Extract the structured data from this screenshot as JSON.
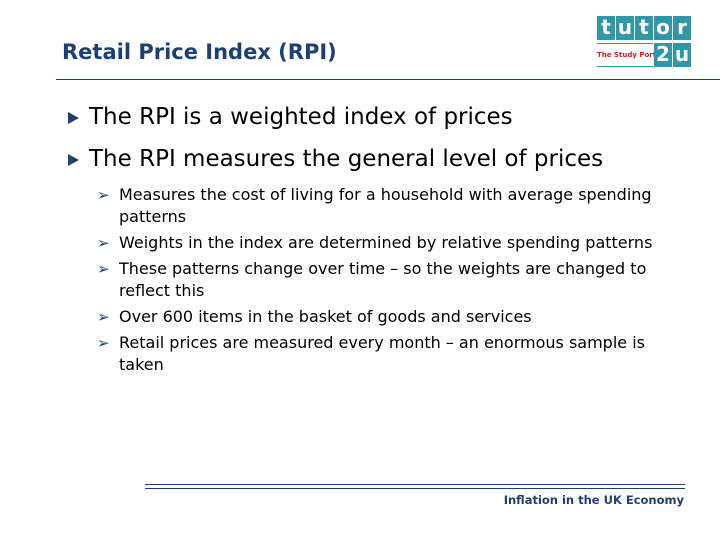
{
  "slide": {
    "title": "Retail Price Index (RPI)",
    "footer": "Inflation in the UK Economy"
  },
  "logo": {
    "letters": [
      "t",
      "u",
      "t",
      "o",
      "r",
      "2",
      "u"
    ],
    "tagline": "The Study Portal",
    "color": "#2f97a8"
  },
  "bullets": [
    {
      "text": "The RPI is a weighted index of prices"
    },
    {
      "text": "The RPI measures the general level of prices"
    }
  ],
  "sub_bullets": [
    {
      "text": "Measures the cost of living for a household with average spending patterns"
    },
    {
      "text": "Weights in the index are determined by relative spending patterns"
    },
    {
      "text": "These patterns change over time – so the weights are changed to reflect this"
    },
    {
      "text": "Over 600 items in the basket of goods and services"
    },
    {
      "text": "Retail prices are measured every month – an enormous sample is taken"
    }
  ],
  "colors": {
    "accent": "#1f3f73"
  }
}
